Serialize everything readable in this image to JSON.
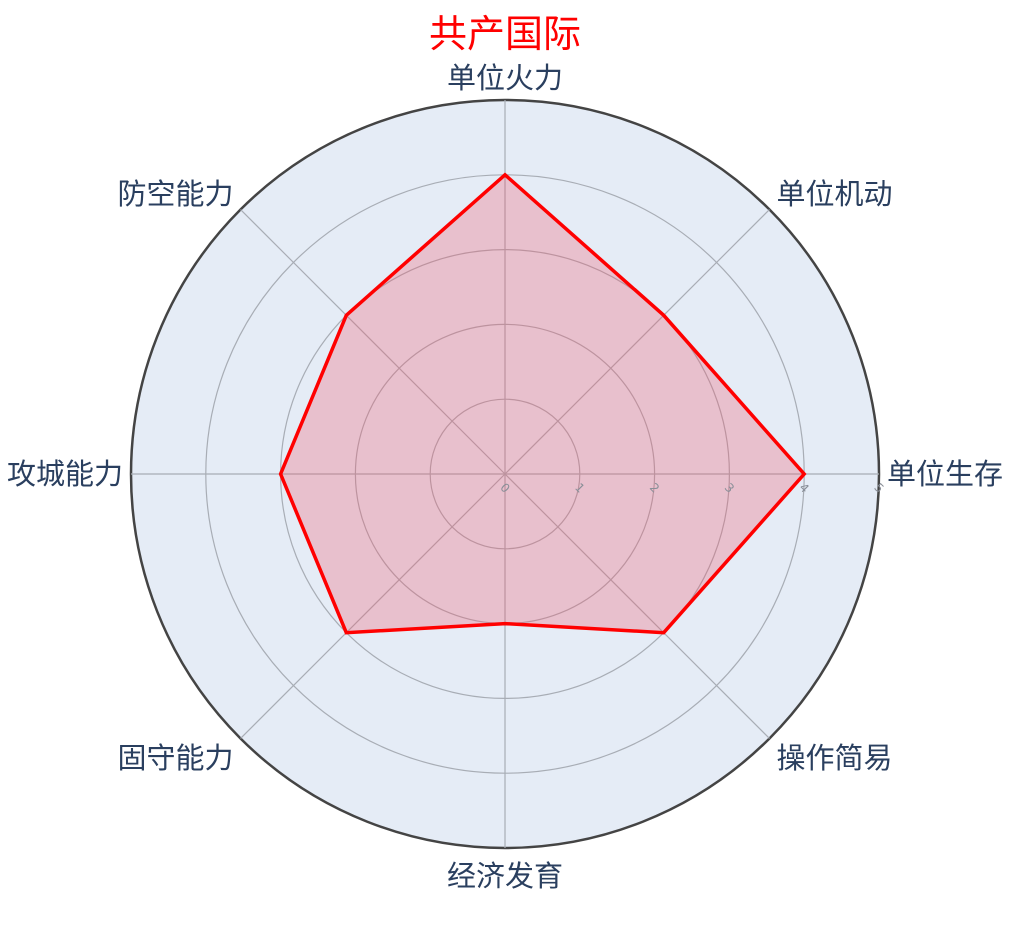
{
  "chart_data": {
    "type": "radar",
    "title": "共产国际",
    "title_color": "#ff0000",
    "axes": [
      "单位火力",
      "单位机动",
      "单位生存",
      "操作简易",
      "经济发育",
      "固守能力",
      "攻城能力",
      "防空能力"
    ],
    "range": [
      0,
      5
    ],
    "ticks": [
      0,
      1,
      2,
      3,
      4,
      5
    ],
    "grid": true,
    "series": [
      {
        "values": [
          4,
          3,
          4,
          3,
          2,
          3,
          3,
          3
        ],
        "line_color": "#ff0000",
        "fill_color": "rgba(239, 90, 110, 0.3)"
      }
    ],
    "polar_bg_color": "#e5ecf6",
    "grid_color": "#a8adb5",
    "outer_ring_color": "#444444"
  }
}
